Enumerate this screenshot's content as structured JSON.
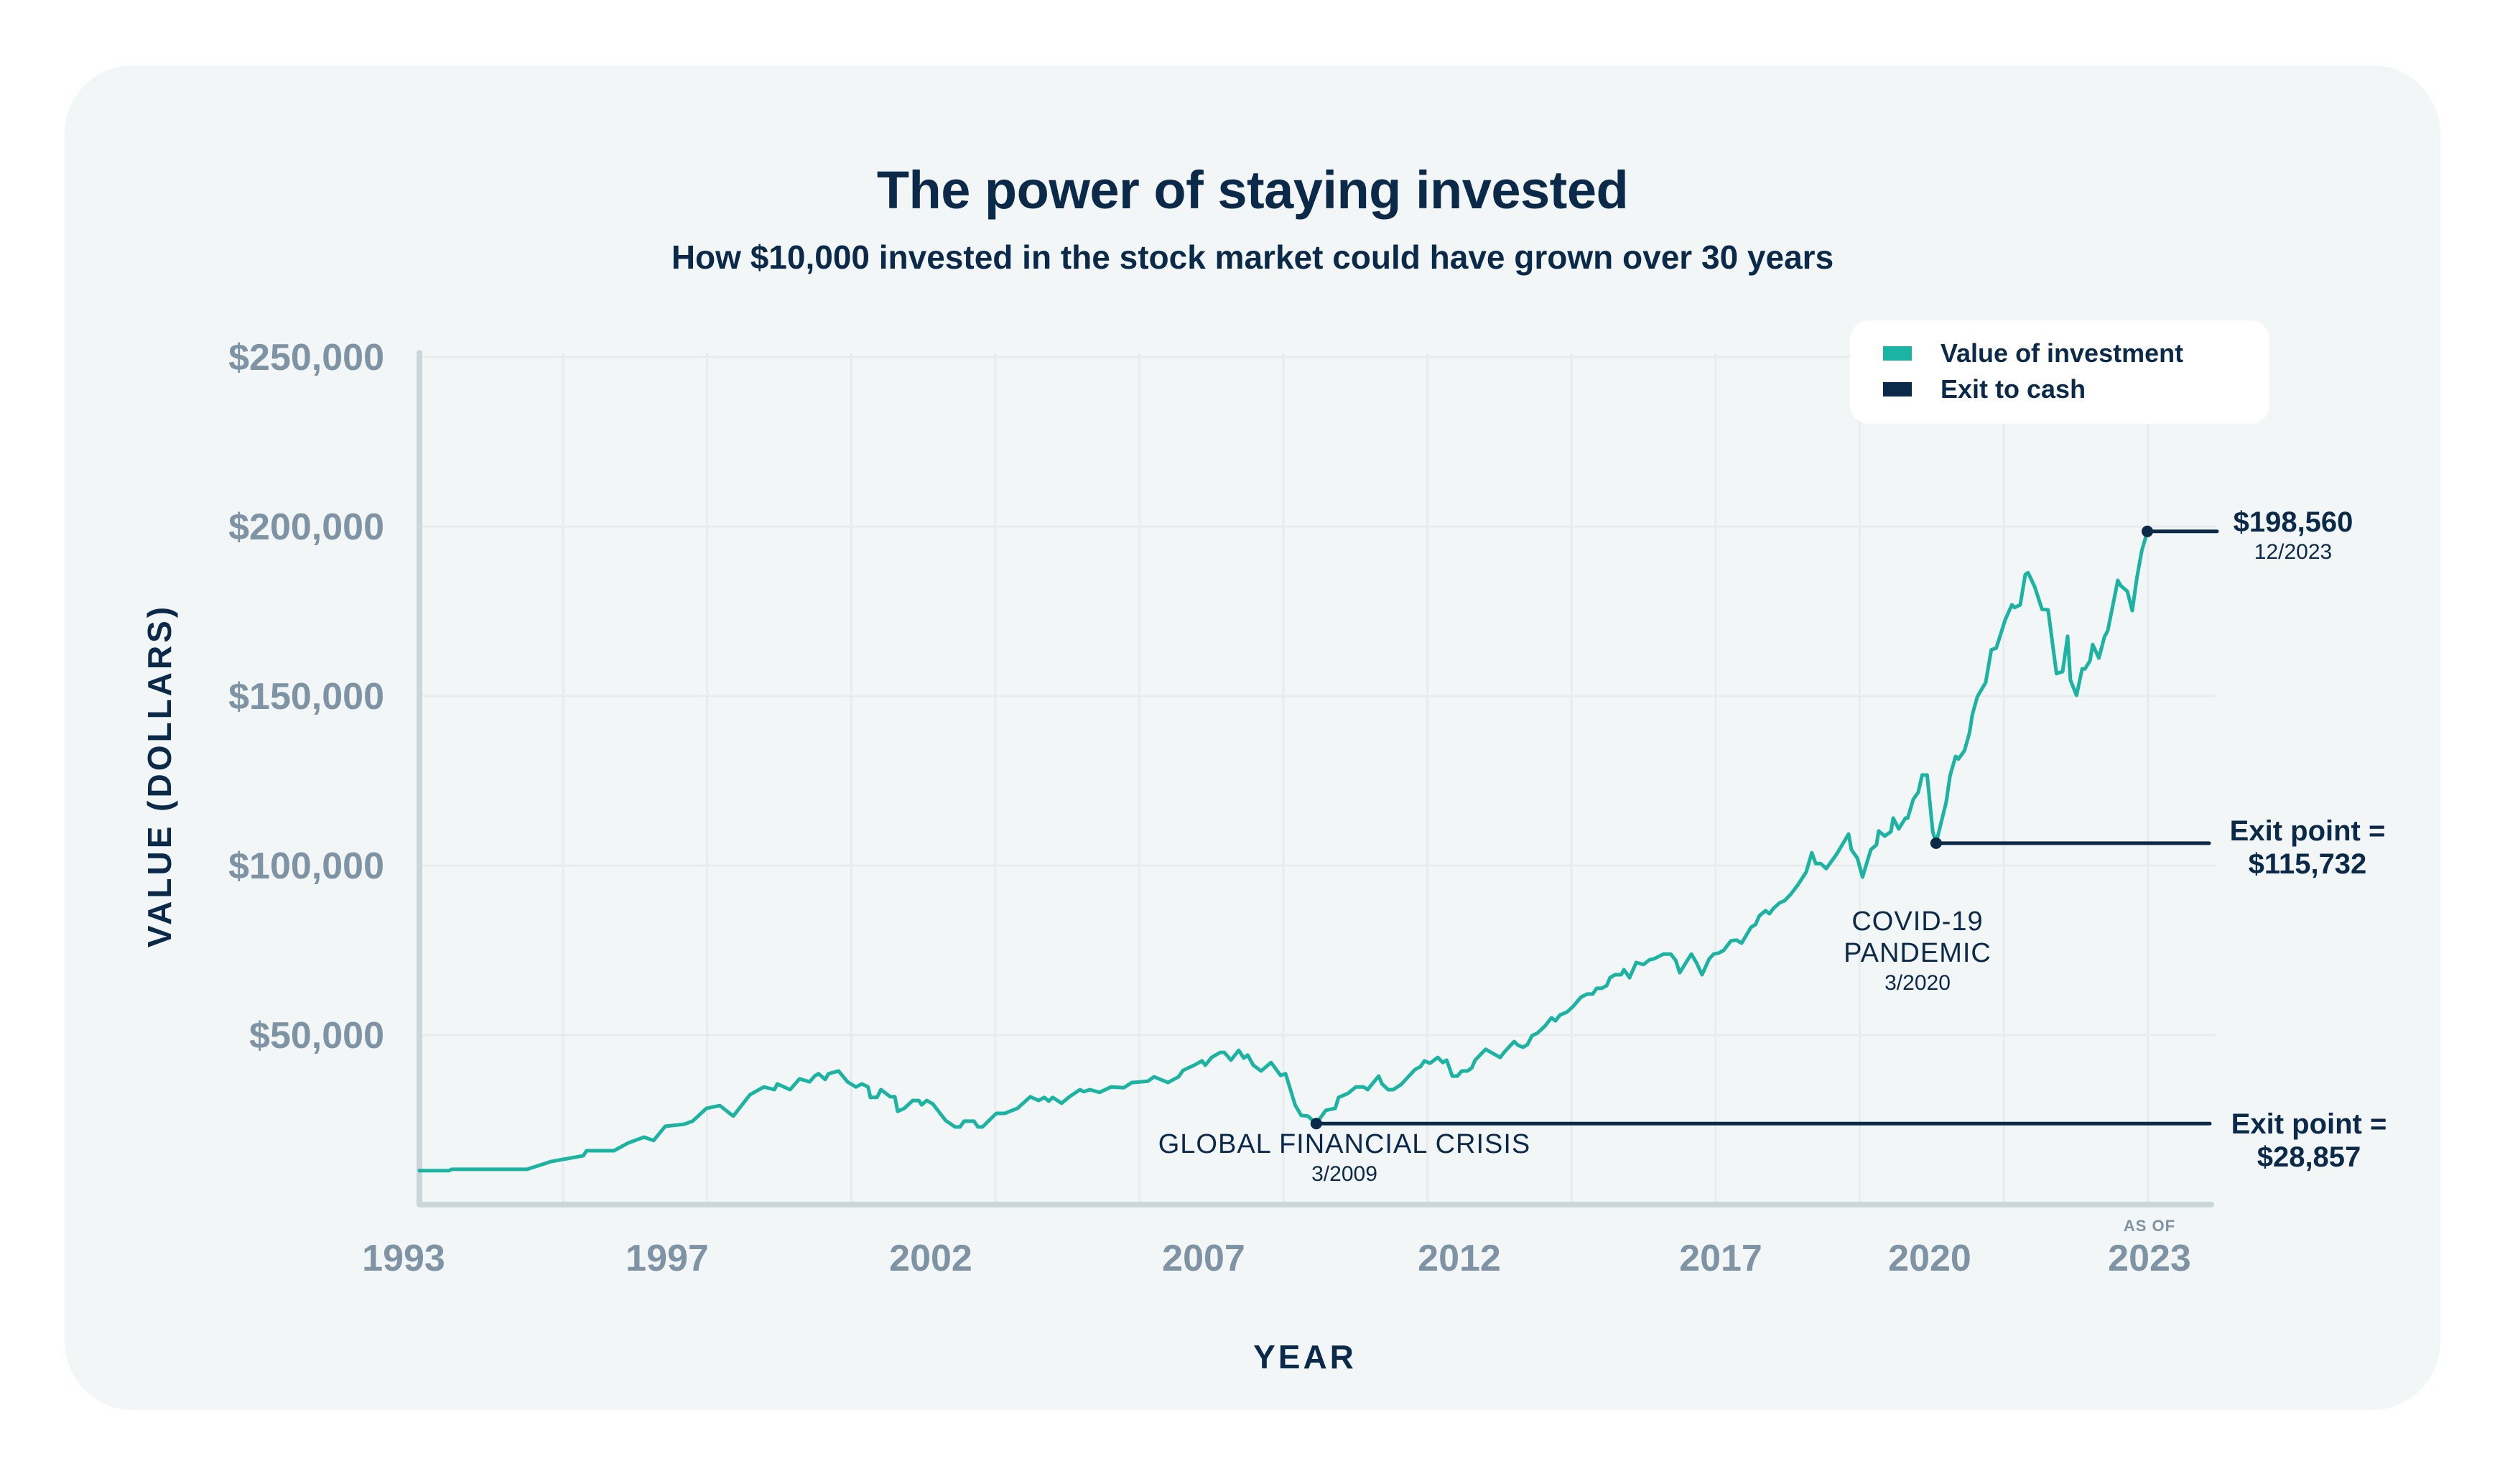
{
  "colors": {
    "investment_line": "#1cb3a3",
    "exit_line": "#0b2a4a",
    "axis": "#ccd5da",
    "grid": "#e8ecee",
    "tick_text": "#7e93a3",
    "text_dark": "#0b2a4a",
    "panel_bg": "#f2f6f7"
  },
  "chart_data": {
    "type": "line",
    "title": "The power of staying invested",
    "subtitle": "How $10,000 invested in the stock market could have grown over 30 years",
    "xlabel": "YEAR",
    "ylabel": "VALUE (DOLLARS)",
    "x_tick_labels": [
      "1993",
      "1997",
      "2002",
      "2007",
      "2012",
      "2017",
      "2020",
      "2023"
    ],
    "x_tick_note": "AS OF",
    "y_tick_labels": [
      "$250,000",
      "$200,000",
      "$150,000",
      "$100,000",
      "$50,000"
    ],
    "y_ticks": [
      250000,
      200000,
      150000,
      100000,
      50000
    ],
    "ylim": [
      0,
      250000
    ],
    "xlim": [
      1993,
      2024
    ],
    "grid": true,
    "legend": {
      "position": "top-right",
      "entries": [
        {
          "label": "Value of investment",
          "color": "#1cb3a3"
        },
        {
          "label": "Exit to cash",
          "color": "#0b2a4a"
        }
      ]
    },
    "series": [
      {
        "name": "Value of investment",
        "x": [
          1993.0,
          1993.53,
          1993.58,
          1994.93,
          1995.36,
          1995.94,
          1996.0,
          1996.49,
          1996.75,
          1997.03,
          1997.2,
          1997.41,
          1997.75,
          1997.9,
          1998.15,
          1998.39,
          1998.63,
          1998.93,
          1999.18,
          1999.37,
          1999.42,
          1999.65,
          1999.82,
          2000.0,
          2000.09,
          2000.16,
          2000.28,
          2000.34,
          2000.52,
          2000.68,
          2000.83,
          2000.94,
          2001.05,
          2001.09,
          2001.21,
          2001.28,
          2001.45,
          2001.53,
          2001.58,
          2001.7,
          2001.85,
          2001.96,
          2002.01,
          2002.1,
          2002.21,
          2002.44,
          2002.61,
          2002.7,
          2002.77,
          2002.95,
          2003.02,
          2003.1,
          2003.35,
          2003.5,
          2003.73,
          2003.96,
          2004.11,
          2004.21,
          2004.29,
          2004.36,
          2004.52,
          2004.66,
          2004.85,
          2004.92,
          2005.03,
          2005.2,
          2005.41,
          2005.64,
          2005.78,
          2006.07,
          2006.18,
          2006.43,
          2006.62,
          2006.7,
          2006.9,
          2007.04,
          2007.1,
          2007.21,
          2007.37,
          2007.44,
          2007.56,
          2007.7,
          2007.79,
          2007.86,
          2007.96,
          2008.1,
          2008.28,
          2008.45,
          2008.54,
          2008.71,
          2008.82,
          2008.94,
          2009.09,
          2009.26,
          2009.43,
          2009.49,
          2009.66,
          2009.8,
          2009.94,
          2010.01,
          2010.21,
          2010.27,
          2010.38,
          2010.47,
          2010.61,
          2010.86,
          2010.96,
          2011.03,
          2011.13,
          2011.27,
          2011.36,
          2011.43,
          2011.53,
          2011.62,
          2011.7,
          2011.8,
          2011.88,
          2011.94,
          2012.13,
          2012.29,
          2012.39,
          2012.46,
          2012.64,
          2012.71,
          2012.8,
          2012.88,
          2012.96,
          2013.06,
          2013.2,
          2013.31,
          2013.38,
          2013.46,
          2013.59,
          2013.69,
          2013.84,
          2013.95,
          2014.05,
          2014.12,
          2014.21,
          2014.3,
          2014.36,
          2014.45,
          2014.56,
          2014.61,
          2014.71,
          2014.83,
          2014.96,
          2015.07,
          2015.15,
          2015.32,
          2015.45,
          2015.54,
          2015.61,
          2015.82,
          2015.91,
          2016.01,
          2016.14,
          2016.22,
          2016.31,
          2016.4,
          2016.53,
          2016.63,
          2016.72,
          2016.89,
          2016.97,
          2017.04,
          2017.15,
          2017.22,
          2017.29,
          2017.4,
          2017.49,
          2017.6,
          2017.73,
          2017.88,
          2017.98,
          2018.05,
          2018.14,
          2018.24,
          2018.42,
          2018.64,
          2018.69,
          2018.8,
          2018.89,
          2019.04,
          2019.14,
          2019.18,
          2019.29,
          2019.4,
          2019.44,
          2019.54,
          2019.66,
          2019.7,
          2019.8,
          2019.89,
          2019.96,
          2020.05,
          2020.15,
          2020.21,
          2020.39,
          2020.46,
          2020.56,
          2020.61,
          2020.72,
          2020.81,
          2020.86,
          2020.95,
          2021.1,
          2021.2,
          2021.29,
          2021.45,
          2021.57,
          2021.62,
          2021.72,
          2021.81,
          2021.86,
          2021.98,
          2022.11,
          2022.22,
          2022.37,
          2022.48,
          2022.57,
          2022.62,
          2022.73,
          2022.83,
          2022.88,
          2022.97,
          2023.02,
          2023.13,
          2023.23,
          2023.29,
          2023.47,
          2023.52,
          2023.64,
          2023.73,
          2023.81,
          2023.9,
          2024.0
        ],
        "values": [
          10000,
          10000,
          10400,
          10400,
          12700,
          14400,
          15900,
          15900,
          18200,
          19900,
          18900,
          23100,
          23700,
          24600,
          28400,
          29200,
          26100,
          32400,
          34700,
          33900,
          35600,
          33900,
          37100,
          36200,
          37900,
          38600,
          36900,
          38600,
          39400,
          36200,
          34700,
          35600,
          34700,
          31600,
          31600,
          33900,
          31800,
          31800,
          27500,
          28400,
          30700,
          30700,
          29400,
          30700,
          29700,
          24800,
          22900,
          22900,
          24600,
          24600,
          22900,
          22900,
          26900,
          26900,
          28400,
          31800,
          30700,
          31600,
          30500,
          31600,
          29900,
          31800,
          33900,
          33300,
          33900,
          33100,
          34700,
          34500,
          36000,
          36400,
          37700,
          36000,
          37700,
          39600,
          41100,
          42400,
          41100,
          43400,
          44900,
          44900,
          42600,
          45500,
          43200,
          44100,
          41100,
          39400,
          41900,
          38100,
          38600,
          29400,
          26300,
          26100,
          23900,
          27800,
          28400,
          31600,
          32800,
          34700,
          34700,
          33900,
          37900,
          35600,
          33900,
          33900,
          35400,
          39800,
          40700,
          42400,
          41700,
          43400,
          41900,
          42600,
          37900,
          37900,
          39400,
          39400,
          40300,
          42600,
          45800,
          44300,
          43400,
          44900,
          48100,
          47000,
          46400,
          47200,
          49800,
          50600,
          52800,
          55100,
          54200,
          55900,
          56800,
          58300,
          61200,
          62100,
          62100,
          63800,
          63800,
          64600,
          66900,
          67800,
          67800,
          69300,
          66900,
          71400,
          70800,
          72200,
          72500,
          73900,
          73900,
          72000,
          68400,
          73900,
          71400,
          67800,
          72500,
          73900,
          74200,
          75000,
          77800,
          78000,
          77100,
          81800,
          82600,
          85200,
          86700,
          85800,
          87300,
          89000,
          89600,
          91500,
          94300,
          98100,
          103800,
          100600,
          100600,
          99100,
          103200,
          109300,
          104700,
          102100,
          96600,
          104700,
          106100,
          110200,
          108700,
          110000,
          114000,
          110800,
          114000,
          114000,
          119500,
          121600,
          126700,
          126700,
          110000,
          106600,
          118600,
          126500,
          132200,
          131400,
          133900,
          139200,
          144500,
          149800,
          154000,
          163600,
          164200,
          172500,
          176900,
          176100,
          176900,
          185800,
          186400,
          182200,
          175600,
          175400,
          156600,
          157200,
          167600,
          154700,
          150200,
          158000,
          158000,
          160400,
          165200,
          161200,
          167400,
          169300,
          184100,
          182600,
          180900,
          175200,
          184700,
          192800,
          198560
        ]
      }
    ],
    "annotations": [
      {
        "name": "global-financial-crisis",
        "event": "GLOBAL FINANCIAL CRISIS",
        "event_lines": [
          "GLOBAL FINANCIAL CRISIS"
        ],
        "date": "3/2009",
        "x": 2009.09,
        "plotted_value": 23900,
        "exit_label": "Exit point =",
        "exit_value_text": "$28,857",
        "exit_value": 28857
      },
      {
        "name": "covid-19-pandemic",
        "event": "COVID-19 PANDEMIC",
        "event_lines": [
          "COVID-19",
          "PANDEMIC"
        ],
        "date": "3/2020",
        "x": 2020.21,
        "plotted_value": 106600,
        "exit_label": "Exit point =",
        "exit_value_text": "$115,732",
        "exit_value": 115732
      },
      {
        "name": "end-value",
        "x": 2024.0,
        "plotted_value": 198560,
        "value_text": "$198,560",
        "date": "12/2023"
      }
    ]
  }
}
